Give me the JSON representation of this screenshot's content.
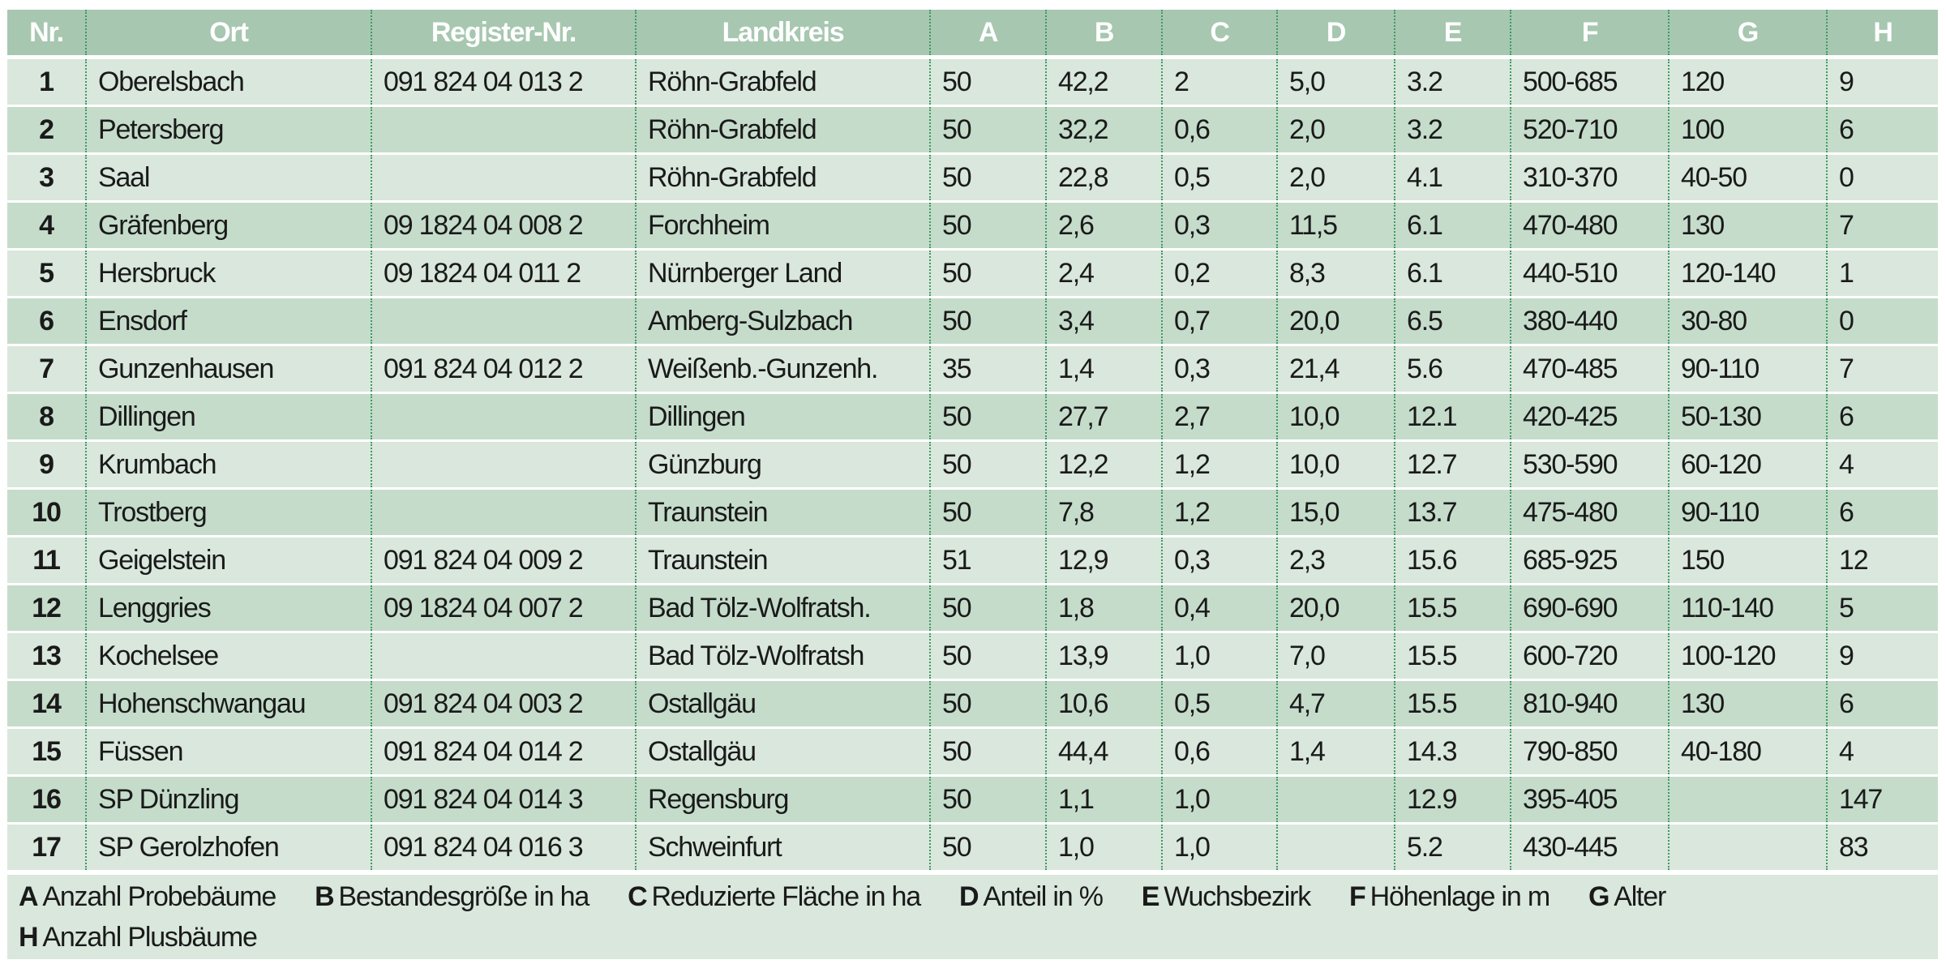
{
  "colors": {
    "header": "#a7c7b0",
    "row_light": "#d9e7dc",
    "row_dark": "#c5dccb",
    "divider": "#3d9a62"
  },
  "headers": [
    "Nr.",
    "Ort",
    "Register-Nr.",
    "Landkreis",
    "A",
    "B",
    "C",
    "D",
    "E",
    "F",
    "G",
    "H"
  ],
  "rows": [
    [
      "1",
      "Oberelsbach",
      "091 824 04 013 2",
      "Röhn-Grabfeld",
      "50",
      "42,2",
      "2",
      "5,0",
      "3.2",
      "500-685",
      "120",
      "9"
    ],
    [
      "2",
      "Petersberg",
      "",
      "Röhn-Grabfeld",
      "50",
      "32,2",
      "0,6",
      "2,0",
      "3.2",
      "520-710",
      "100",
      "6"
    ],
    [
      "3",
      "Saal",
      "",
      "Röhn-Grabfeld",
      "50",
      "22,8",
      "0,5",
      "2,0",
      "4.1",
      "310-370",
      "40-50",
      "0"
    ],
    [
      "4",
      "Gräfenberg",
      "09 1824 04 008 2",
      "Forchheim",
      "50",
      "2,6",
      "0,3",
      "11,5",
      "6.1",
      "470-480",
      "130",
      "7"
    ],
    [
      "5",
      "Hersbruck",
      "09 1824 04 011 2",
      "Nürnberger Land",
      "50",
      "2,4",
      "0,2",
      "8,3",
      "6.1",
      "440-510",
      "120-140",
      "1"
    ],
    [
      "6",
      "Ensdorf",
      "",
      "Amberg-Sulzbach",
      "50",
      "3,4",
      "0,7",
      "20,0",
      "6.5",
      "380-440",
      "30-80",
      "0"
    ],
    [
      "7",
      "Gunzenhausen",
      "091 824 04 012 2",
      "Weißenb.-Gunzenh.",
      "35",
      "1,4",
      "0,3",
      "21,4",
      "5.6",
      "470-485",
      "90-110",
      "7"
    ],
    [
      "8",
      "Dillingen",
      "",
      "Dillingen",
      "50",
      "27,7",
      "2,7",
      "10,0",
      "12.1",
      "420-425",
      "50-130",
      "6"
    ],
    [
      "9",
      "Krumbach",
      "",
      "Günzburg",
      "50",
      "12,2",
      "1,2",
      "10,0",
      "12.7",
      "530-590",
      "60-120",
      "4"
    ],
    [
      "10",
      "Trostberg",
      "",
      "Traunstein",
      "50",
      "7,8",
      "1,2",
      "15,0",
      "13.7",
      "475-480",
      "90-110",
      "6"
    ],
    [
      "11",
      "Geigelstein",
      "091 824 04 009 2",
      "Traunstein",
      "51",
      "12,9",
      "0,3",
      "2,3",
      "15.6",
      "685-925",
      "150",
      "12"
    ],
    [
      "12",
      "Lenggries",
      "09 1824 04 007 2",
      "Bad Tölz-Wolfratsh.",
      "50",
      "1,8",
      "0,4",
      "20,0",
      "15.5",
      "690-690",
      "110-140",
      "5"
    ],
    [
      "13",
      "Kochelsee",
      "",
      "Bad Tölz-Wolfratsh",
      "50",
      "13,9",
      "1,0",
      "7,0",
      "15.5",
      "600-720",
      "100-120",
      "9"
    ],
    [
      "14",
      "Hohenschwangau",
      "091 824 04 003 2",
      "Ostallgäu",
      "50",
      "10,6",
      "0,5",
      "4,7",
      "15.5",
      "810-940",
      "130",
      "6"
    ],
    [
      "15",
      "Füssen",
      "091 824 04 014 2",
      "Ostallgäu",
      "50",
      "44,4",
      "0,6",
      "1,4",
      "14.3",
      "790-850",
      "40-180",
      "4"
    ],
    [
      "16",
      "SP Dünzling",
      "091 824 04 014 3",
      "Regensburg",
      "50",
      "1,1",
      "1,0",
      "",
      "12.9",
      "395-405",
      "",
      "147"
    ],
    [
      "17",
      "SP Gerolzhofen",
      "091 824 04 016 3",
      "Schweinfurt",
      "50",
      "1,0",
      "1,0",
      "",
      "5.2",
      "430-445",
      "",
      "83"
    ]
  ],
  "legend": [
    {
      "key": "A",
      "text": "Anzahl Probebäume"
    },
    {
      "key": "B",
      "text": "Bestandesgröße in ha"
    },
    {
      "key": "C",
      "text": "Reduzierte Fläche in ha"
    },
    {
      "key": "D",
      "text": "Anteil in %"
    },
    {
      "key": "E",
      "text": "Wuchsbezirk"
    },
    {
      "key": "F",
      "text": "Höhenlage in m"
    },
    {
      "key": "G",
      "text": "Alter"
    },
    {
      "key": "H",
      "text": "Anzahl Plusbäume"
    }
  ]
}
